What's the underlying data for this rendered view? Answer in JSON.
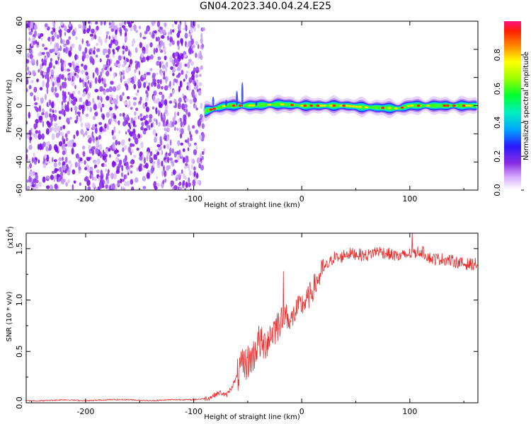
{
  "title": "GN04.2023.340.04.24.E25",
  "chart_data": [
    {
      "type": "heatmap",
      "xlabel": "Height of straight line (km)",
      "ylabel": "Frequency (Hz)",
      "xlim": [
        -255,
        163
      ],
      "ylim": [
        -60,
        60
      ],
      "xticks": [
        -200,
        -100,
        0,
        100
      ],
      "yticks": [
        -60,
        -40,
        -20,
        0,
        20,
        40,
        60
      ],
      "colorbar": {
        "label": "Normalized spectral amplitude",
        "ticks": [
          "0.0",
          "0.2",
          "0.4",
          "0.6",
          "0.8"
        ],
        "range": [
          0,
          1
        ]
      },
      "regions": [
        {
          "x_start": -255,
          "x_end": -90,
          "desc": "broadband low amplitude noise"
        },
        {
          "x_start": -90,
          "x_end": 163,
          "desc": "narrow band at 0 Hz with high amplitude"
        }
      ],
      "band_center_hz": [
        {
          "x": -90,
          "y": -4
        },
        {
          "x": -80,
          "y": -2
        },
        {
          "x": -70,
          "y": 0
        },
        {
          "x": -50,
          "y": 0
        },
        {
          "x": -20,
          "y": 1
        },
        {
          "x": 0,
          "y": 0
        },
        {
          "x": 40,
          "y": 0
        },
        {
          "x": 55,
          "y": -1
        },
        {
          "x": 90,
          "y": -2
        },
        {
          "x": 100,
          "y": 0
        },
        {
          "x": 163,
          "y": 0
        }
      ]
    },
    {
      "type": "line",
      "xlabel": "Height of straight line (km)",
      "ylabel": "SNR (10 * v/v)",
      "yscale_label": "(x10",
      "yscale_exp": "4",
      "yscale_close": ")",
      "xlim": [
        -255,
        163
      ],
      "ylim": [
        0,
        1.65
      ],
      "xticks": [
        -200,
        -100,
        0,
        100
      ],
      "yticks": [
        "0.0",
        "0.5",
        "1.0",
        "1.5"
      ],
      "color": "#e83030",
      "series": [
        {
          "x": [
            -255,
            -240,
            -220,
            -200,
            -180,
            -160,
            -140,
            -120,
            -100,
            -90,
            -85,
            -80,
            -75,
            -70,
            -65,
            -60,
            -55,
            -50,
            -45,
            -40,
            -35,
            -30,
            -25,
            -20,
            -15,
            -10,
            -5,
            0,
            5,
            10,
            15,
            20,
            25,
            30,
            35,
            40,
            50,
            60,
            70,
            80,
            90,
            100,
            110,
            120,
            130,
            140,
            150,
            163
          ],
          "values": [
            0.02,
            0.02,
            0.03,
            0.02,
            0.03,
            0.03,
            0.02,
            0.03,
            0.03,
            0.04,
            0.05,
            0.08,
            0.1,
            0.07,
            0.15,
            0.25,
            0.35,
            0.4,
            0.45,
            0.6,
            0.55,
            0.65,
            0.72,
            0.8,
            0.85,
            0.8,
            0.9,
            0.95,
            1.0,
            1.1,
            1.2,
            1.3,
            1.35,
            1.42,
            1.4,
            1.45,
            1.45,
            1.43,
            1.48,
            1.45,
            1.42,
            1.45,
            1.48,
            1.4,
            1.4,
            1.38,
            1.35,
            1.35
          ]
        }
      ]
    }
  ]
}
